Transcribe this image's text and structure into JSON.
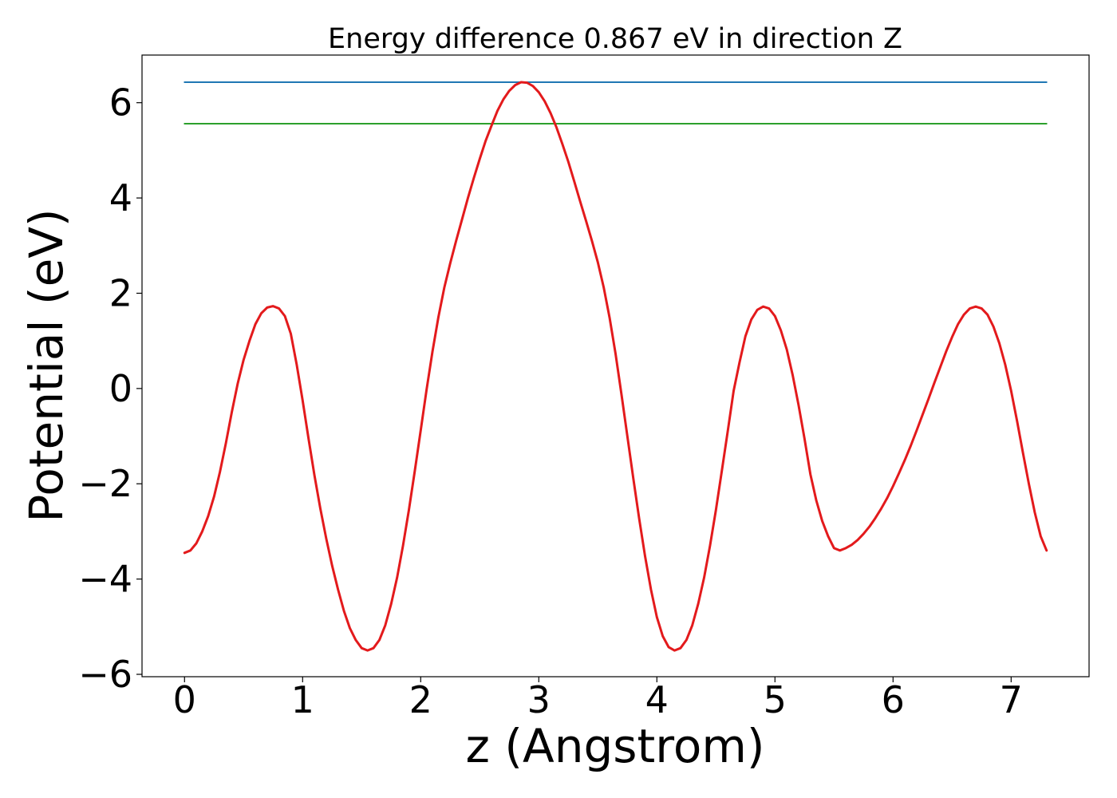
{
  "chart_data": {
    "type": "line",
    "title": "Energy difference 0.867 eV in direction Z",
    "xlabel": "z (Angstrom)",
    "ylabel": "Potential (eV)",
    "xlim": [
      -0.36,
      7.66
    ],
    "ylim": [
      -6.05,
      7.0
    ],
    "xticks": [
      0,
      1,
      2,
      3,
      4,
      5,
      6,
      7
    ],
    "xtick_labels": [
      "0",
      "1",
      "2",
      "3",
      "4",
      "5",
      "6",
      "7"
    ],
    "yticks": [
      -6,
      -4,
      -2,
      0,
      2,
      4,
      6
    ],
    "ytick_labels": [
      "−6",
      "−4",
      "−2",
      "0",
      "2",
      "4",
      "6"
    ],
    "grid": false,
    "series": [
      {
        "color": "#1f77b4",
        "x": [
          0,
          7.3
        ],
        "y": [
          6.43,
          6.43
        ]
      },
      {
        "color": "#2ca02c",
        "x": [
          0,
          7.3
        ],
        "y": [
          5.56,
          5.56
        ]
      },
      {
        "color": "#e31a1c",
        "x": [
          0,
          0.05,
          0.1,
          0.15,
          0.2,
          0.25,
          0.3,
          0.35,
          0.4,
          0.45,
          0.5,
          0.55,
          0.6,
          0.65,
          0.7,
          0.75,
          0.8,
          0.85,
          0.9,
          0.95,
          1.0,
          1.05,
          1.1,
          1.15,
          1.2,
          1.25,
          1.3,
          1.35,
          1.4,
          1.45,
          1.5,
          1.55,
          1.6,
          1.65,
          1.7,
          1.75,
          1.8,
          1.85,
          1.9,
          1.95,
          2.0,
          2.05,
          2.1,
          2.15,
          2.2,
          2.25,
          2.3,
          2.35,
          2.4,
          2.45,
          2.5,
          2.55,
          2.6,
          2.65,
          2.7,
          2.75,
          2.8,
          2.85,
          2.9,
          2.95,
          3.0,
          3.05,
          3.1,
          3.15,
          3.2,
          3.25,
          3.3,
          3.35,
          3.4,
          3.45,
          3.5,
          3.55,
          3.6,
          3.65,
          3.7,
          3.75,
          3.8,
          3.85,
          3.9,
          3.95,
          4.0,
          4.05,
          4.1,
          4.15,
          4.2,
          4.25,
          4.3,
          4.35,
          4.4,
          4.45,
          4.5,
          4.55,
          4.6,
          4.65,
          4.7,
          4.75,
          4.8,
          4.85,
          4.9,
          4.95,
          5.0,
          5.05,
          5.1,
          5.15,
          5.2,
          5.25,
          5.3,
          5.35,
          5.4,
          5.45,
          5.5,
          5.55,
          5.6,
          5.65,
          5.7,
          5.75,
          5.8,
          5.85,
          5.9,
          5.95,
          6.0,
          6.05,
          6.1,
          6.15,
          6.2,
          6.25,
          6.3,
          6.35,
          6.4,
          6.45,
          6.5,
          6.55,
          6.6,
          6.65,
          6.7,
          6.75,
          6.8,
          6.85,
          6.9,
          6.95,
          7.0,
          7.05,
          7.1,
          7.15,
          7.2,
          7.25,
          7.3
        ],
        "y": [
          -3.45,
          -3.4,
          -3.25,
          -3.0,
          -2.68,
          -2.27,
          -1.75,
          -1.15,
          -0.5,
          0.1,
          0.6,
          1.0,
          1.35,
          1.58,
          1.7,
          1.73,
          1.68,
          1.52,
          1.15,
          0.5,
          -0.25,
          -1.05,
          -1.82,
          -2.52,
          -3.15,
          -3.72,
          -4.22,
          -4.67,
          -5.03,
          -5.28,
          -5.45,
          -5.5,
          -5.45,
          -5.28,
          -4.97,
          -4.52,
          -3.97,
          -3.3,
          -2.55,
          -1.73,
          -0.88,
          -0.02,
          0.78,
          1.5,
          2.12,
          2.63,
          3.1,
          3.55,
          4.0,
          4.42,
          4.82,
          5.2,
          5.52,
          5.83,
          6.07,
          6.25,
          6.37,
          6.43,
          6.42,
          6.35,
          6.22,
          6.03,
          5.78,
          5.48,
          5.13,
          4.76,
          4.35,
          3.93,
          3.52,
          3.1,
          2.65,
          2.12,
          1.48,
          0.73,
          -0.12,
          -1.0,
          -1.88,
          -2.73,
          -3.52,
          -4.22,
          -4.8,
          -5.2,
          -5.43,
          -5.5,
          -5.45,
          -5.28,
          -4.97,
          -4.52,
          -3.97,
          -3.3,
          -2.55,
          -1.73,
          -0.9,
          -0.05,
          0.55,
          1.1,
          1.45,
          1.65,
          1.72,
          1.68,
          1.52,
          1.22,
          0.82,
          0.28,
          -0.35,
          -1.05,
          -1.8,
          -2.35,
          -2.78,
          -3.1,
          -3.35,
          -3.4,
          -3.35,
          -3.28,
          -3.18,
          -3.05,
          -2.9,
          -2.72,
          -2.52,
          -2.3,
          -2.05,
          -1.78,
          -1.5,
          -1.2,
          -0.88,
          -0.55,
          -0.22,
          0.12,
          0.45,
          0.78,
          1.08,
          1.35,
          1.55,
          1.68,
          1.72,
          1.68,
          1.55,
          1.3,
          0.95,
          0.5,
          -0.05,
          -0.68,
          -1.35,
          -2.0,
          -2.6,
          -3.1,
          -3.4
        ]
      }
    ]
  }
}
